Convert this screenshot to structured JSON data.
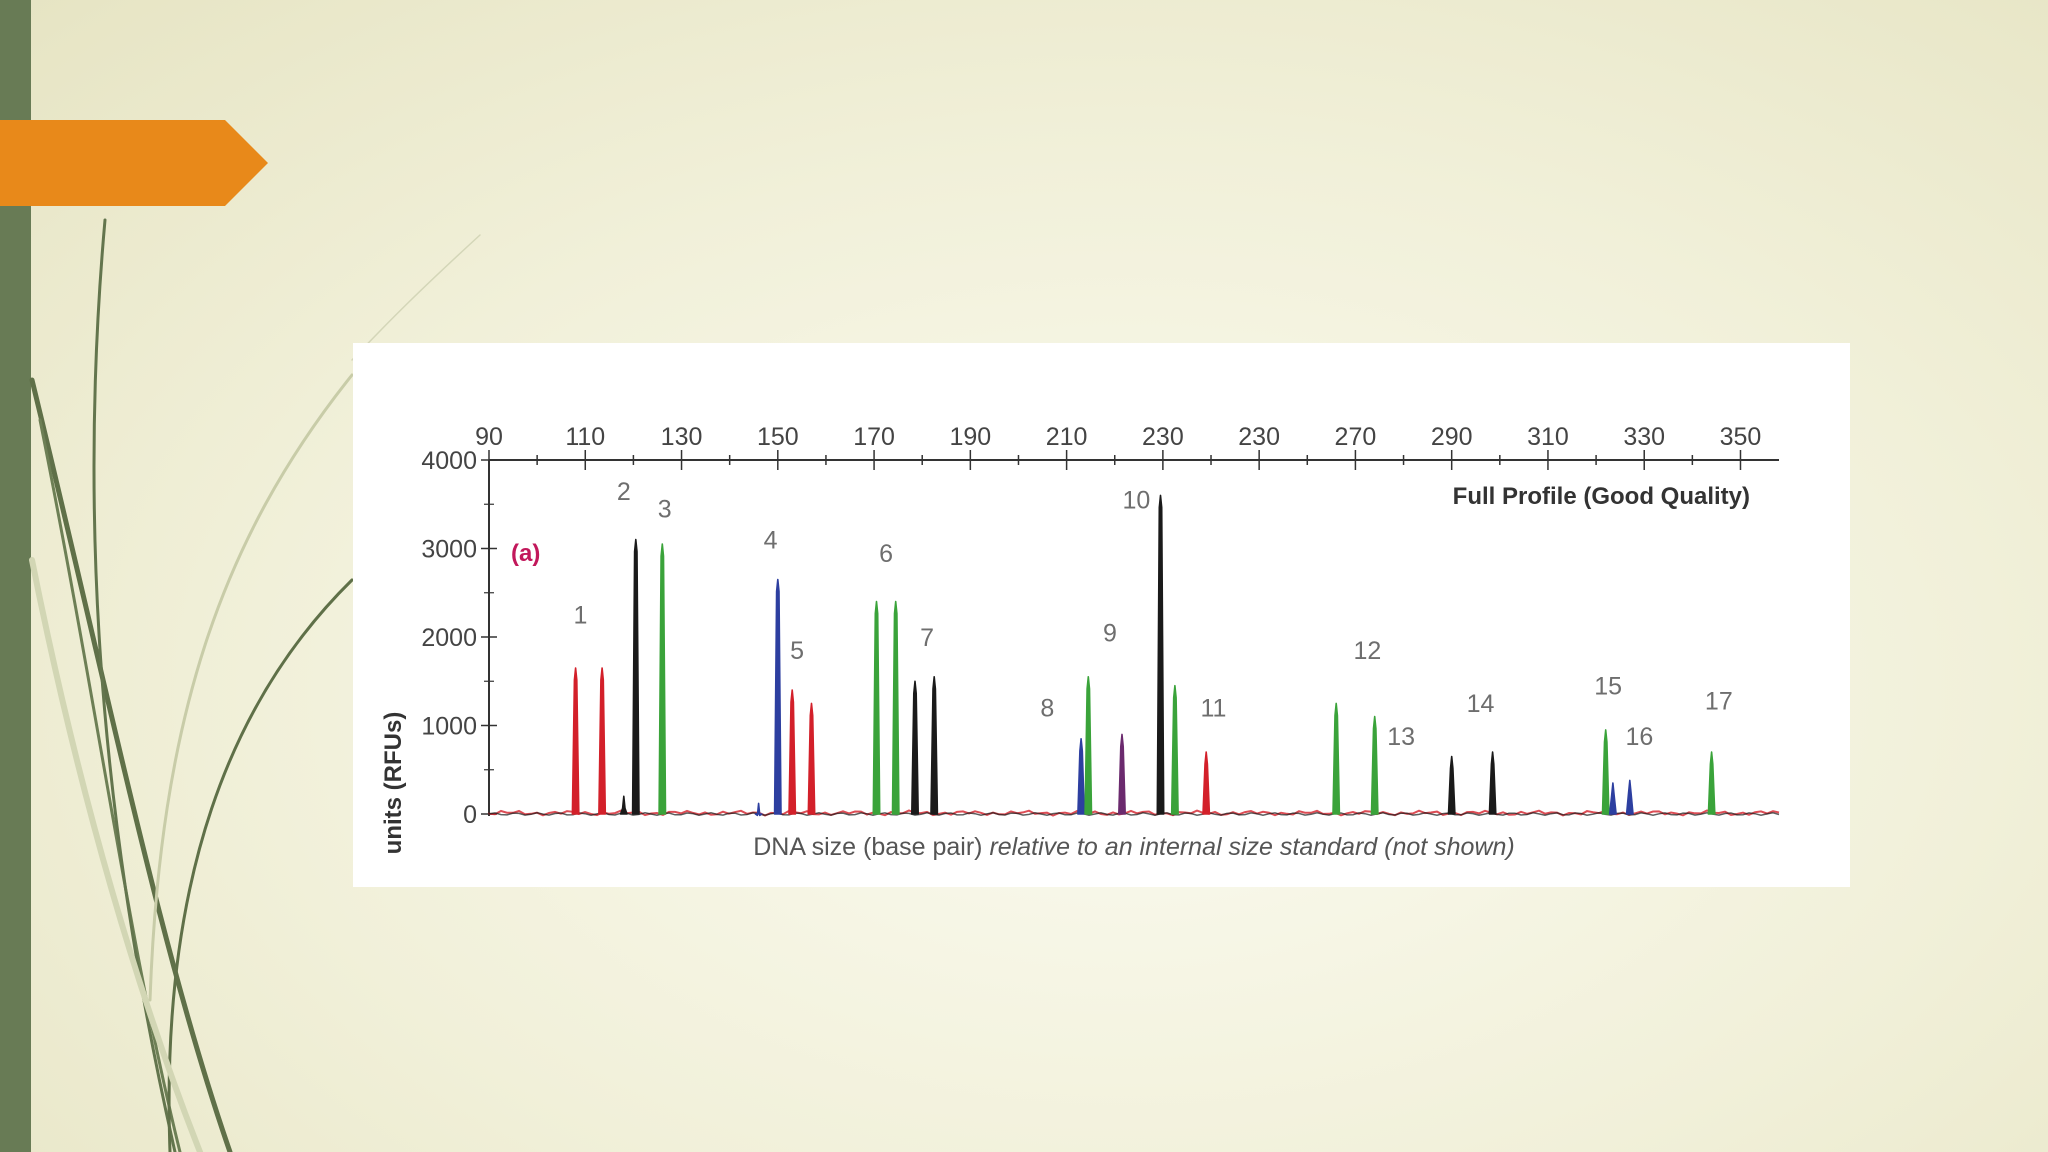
{
  "slide": {
    "accent_color": "#e8891a",
    "sidebar_color": "#687b55"
  },
  "chart_data": {
    "type": "line",
    "title": "Full Profile (Good Quality)",
    "panel_label": "(a)",
    "xlabel_plain": "DNA size (base pair)",
    "xlabel_italic": "relative to an internal size standard (not shown)",
    "ylabel": "units (RFUs)",
    "x_ticks": [
      "90",
      "110",
      "130",
      "150",
      "170",
      "190",
      "210",
      "230",
      "230",
      "270",
      "290",
      "310",
      "330",
      "350"
    ],
    "ylim": [
      0,
      4000
    ],
    "y_ticks": [
      0,
      1000,
      2000,
      3000,
      4000
    ],
    "x_axis_position": "top",
    "grid": false,
    "colors": {
      "red": "#d3202a",
      "black": "#1a1a1a",
      "green": "#3aa33a",
      "blue": "#2d3fa0",
      "purple": "#6b2a6e"
    },
    "peaks": [
      {
        "x": 108.0,
        "height": 1650,
        "color": "red"
      },
      {
        "x": 113.5,
        "height": 1650,
        "color": "red"
      },
      {
        "x": 120.5,
        "height": 3100,
        "color": "black"
      },
      {
        "x": 118.0,
        "height": 200,
        "color": "black"
      },
      {
        "x": 126.0,
        "height": 3050,
        "color": "green"
      },
      {
        "x": 150.0,
        "height": 2650,
        "color": "blue"
      },
      {
        "x": 146.0,
        "height": 120,
        "color": "blue"
      },
      {
        "x": 153.0,
        "height": 1400,
        "color": "red"
      },
      {
        "x": 157.0,
        "height": 1250,
        "color": "red"
      },
      {
        "x": 170.5,
        "height": 2400,
        "color": "green"
      },
      {
        "x": 174.5,
        "height": 2400,
        "color": "green"
      },
      {
        "x": 178.5,
        "height": 1500,
        "color": "black"
      },
      {
        "x": 182.5,
        "height": 1550,
        "color": "black"
      },
      {
        "x": 213.0,
        "height": 850,
        "color": "blue"
      },
      {
        "x": 214.5,
        "height": 1550,
        "color": "green"
      },
      {
        "x": 221.5,
        "height": 900,
        "color": "purple"
      },
      {
        "x": 229.5,
        "height": 3600,
        "color": "black"
      },
      {
        "x": 232.5,
        "height": 1450,
        "color": "green"
      },
      {
        "x": 239.0,
        "height": 700,
        "color": "red"
      },
      {
        "x": 266.0,
        "height": 1250,
        "color": "green"
      },
      {
        "x": 274.0,
        "height": 1100,
        "color": "green"
      },
      {
        "x": 290.0,
        "height": 650,
        "color": "black"
      },
      {
        "x": 298.5,
        "height": 700,
        "color": "black"
      },
      {
        "x": 322.0,
        "height": 950,
        "color": "green"
      },
      {
        "x": 323.5,
        "height": 350,
        "color": "blue"
      },
      {
        "x": 327.0,
        "height": 380,
        "color": "blue"
      },
      {
        "x": 344.0,
        "height": 700,
        "color": "green"
      }
    ],
    "peak_labels": [
      {
        "text": "1",
        "x": 109.0,
        "y": 2150
      },
      {
        "text": "2",
        "x": 118.0,
        "y": 3550
      },
      {
        "text": "3",
        "x": 126.5,
        "y": 3350
      },
      {
        "text": "4",
        "x": 148.5,
        "y": 3000
      },
      {
        "text": "5",
        "x": 154.0,
        "y": 1750
      },
      {
        "text": "6",
        "x": 172.5,
        "y": 2850
      },
      {
        "text": "7",
        "x": 181.0,
        "y": 1900
      },
      {
        "text": "8",
        "x": 206.0,
        "y": 1100
      },
      {
        "text": "9",
        "x": 219.0,
        "y": 1950
      },
      {
        "text": "10",
        "x": 224.5,
        "y": 3450
      },
      {
        "text": "11",
        "x": 240.5,
        "y": 1100
      },
      {
        "text": "12",
        "x": 272.5,
        "y": 1750
      },
      {
        "text": "13",
        "x": 279.5,
        "y": 780
      },
      {
        "text": "14",
        "x": 296.0,
        "y": 1150
      },
      {
        "text": "15",
        "x": 322.5,
        "y": 1350
      },
      {
        "text": "16",
        "x": 329.0,
        "y": 780
      },
      {
        "text": "17",
        "x": 345.5,
        "y": 1180
      }
    ]
  }
}
